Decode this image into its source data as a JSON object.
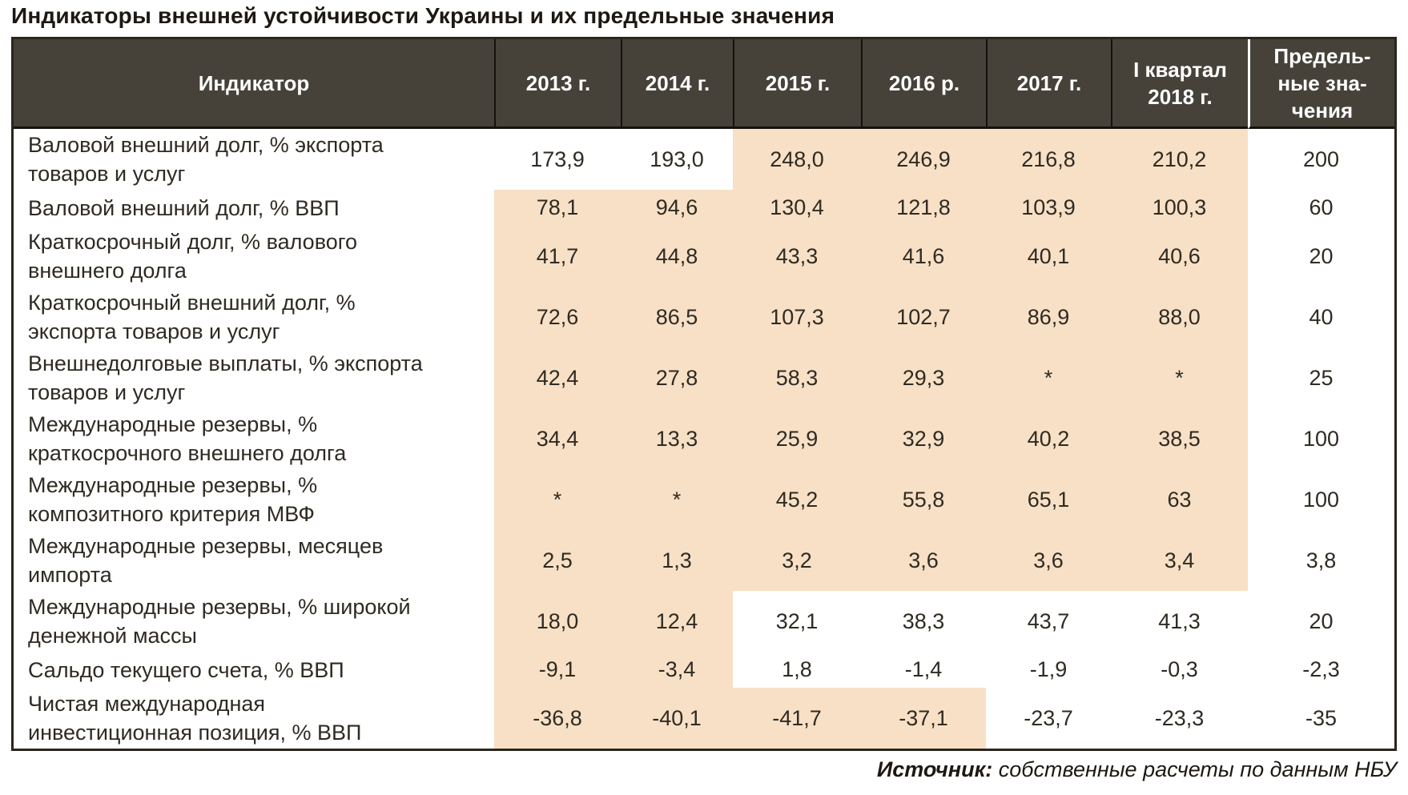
{
  "page_title": "Индикаторы внешней устойчивости Украины и их предельные значения",
  "colors": {
    "header_bg": "#46423a",
    "header_text": "#ffffff",
    "highlight": "#f7e0c5",
    "body_text": "#2f2a23",
    "border": "#2a251f"
  },
  "table": {
    "columns": [
      "Индикатор",
      "2013 г.",
      "2014 г.",
      "2015 г.",
      "2016 р.",
      "2017 г.",
      "I квартал\n2018 г.",
      "Предель-\nные зна-\nчения"
    ],
    "rows": [
      {
        "label": "Валовой внешний долг, % экспорта\nтоваров и услуг",
        "values": [
          "173,9",
          "193,0",
          "248,0",
          "246,9",
          "216,8",
          "210,2"
        ],
        "threshold": "200",
        "highlight": [
          false,
          false,
          true,
          true,
          true,
          true
        ]
      },
      {
        "label": "Валовой внешний долг, % ВВП",
        "values": [
          "78,1",
          "94,6",
          "130,4",
          "121,8",
          "103,9",
          "100,3"
        ],
        "threshold": "60",
        "highlight": [
          true,
          true,
          true,
          true,
          true,
          true
        ]
      },
      {
        "label": "Краткосрочный долг, % валового\nвнешнего долга",
        "values": [
          "41,7",
          "44,8",
          "43,3",
          "41,6",
          "40,1",
          "40,6"
        ],
        "threshold": "20",
        "highlight": [
          true,
          true,
          true,
          true,
          true,
          true
        ]
      },
      {
        "label": "Краткосрочный внешний долг, %\nэкспорта товаров и услуг",
        "values": [
          "72,6",
          "86,5",
          "107,3",
          "102,7",
          "86,9",
          "88,0"
        ],
        "threshold": "40",
        "highlight": [
          true,
          true,
          true,
          true,
          true,
          true
        ]
      },
      {
        "label": "Внешнедолговые выплаты, % экспорта\nтоваров и услуг",
        "values": [
          "42,4",
          "27,8",
          "58,3",
          "29,3",
          "*",
          "*"
        ],
        "threshold": "25",
        "highlight": [
          true,
          true,
          true,
          true,
          true,
          true
        ]
      },
      {
        "label": "Международные резервы, %\nкраткосрочного внешнего долга",
        "values": [
          "34,4",
          "13,3",
          "25,9",
          "32,9",
          "40,2",
          "38,5"
        ],
        "threshold": "100",
        "highlight": [
          true,
          true,
          true,
          true,
          true,
          true
        ]
      },
      {
        "label": "Международные резервы, %\nкомпозитного критерия МВФ",
        "values": [
          "*",
          "*",
          "45,2",
          "55,8",
          "65,1",
          "63"
        ],
        "threshold": "100",
        "highlight": [
          true,
          true,
          true,
          true,
          true,
          true
        ]
      },
      {
        "label": "Международные резервы, месяцев\nимпорта",
        "values": [
          "2,5",
          "1,3",
          "3,2",
          "3,6",
          "3,6",
          "3,4"
        ],
        "threshold": "3,8",
        "highlight": [
          true,
          true,
          true,
          true,
          true,
          true
        ]
      },
      {
        "label": "Международные резервы, % широкой\nденежной массы",
        "values": [
          "18,0",
          "12,4",
          "32,1",
          "38,3",
          "43,7",
          "41,3"
        ],
        "threshold": "20",
        "highlight": [
          true,
          true,
          false,
          false,
          false,
          false
        ]
      },
      {
        "label": "Сальдо текущего счета, % ВВП",
        "values": [
          "-9,1",
          "-3,4",
          "1,8",
          "-1,4",
          "-1,9",
          "-0,3"
        ],
        "threshold": "-2,3",
        "highlight": [
          true,
          true,
          false,
          false,
          false,
          false
        ]
      },
      {
        "label": "Чистая международная\nинвестиционная позиция, % ВВП",
        "values": [
          "-36,8",
          "-40,1",
          "-41,7",
          "-37,1",
          "-23,7",
          "-23,3"
        ],
        "threshold": "-35",
        "highlight": [
          true,
          true,
          true,
          true,
          false,
          false
        ]
      }
    ]
  },
  "footer": {
    "source_label": "Источник:",
    "source_text": " собственные расчеты по данным НБУ"
  }
}
